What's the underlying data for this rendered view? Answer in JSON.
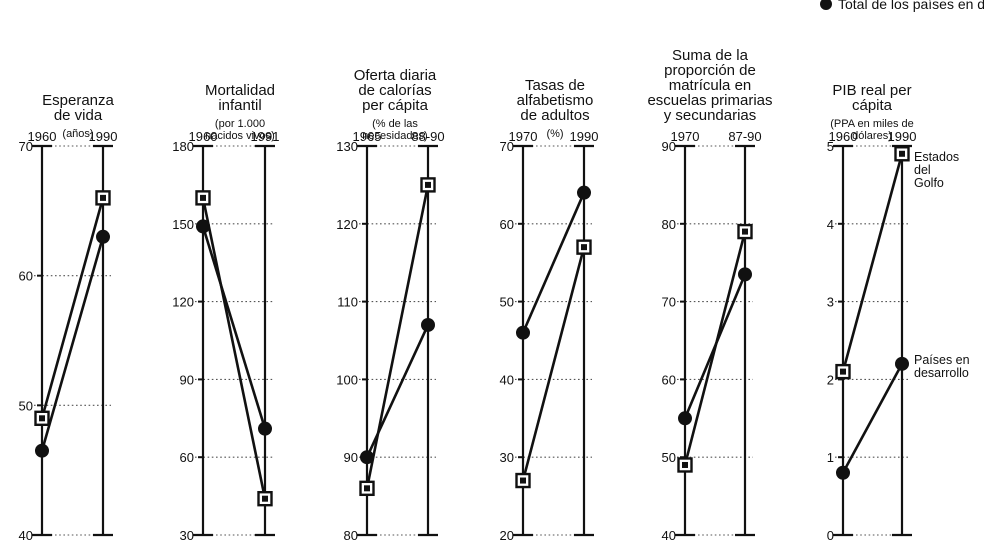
{
  "legend": {
    "label": "Total de los países en desarrollo"
  },
  "chart_data": {
    "type": "line",
    "series_names": [
      "Estados del Golfo",
      "Países en desarrollo"
    ],
    "panels": [
      {
        "title": [
          "Esperanza",
          "de vida"
        ],
        "subtitle": [
          "(años)"
        ],
        "x": [
          "1960",
          "1990"
        ],
        "ylim": [
          40,
          70
        ],
        "ticks": [
          40,
          50,
          60,
          70
        ],
        "series": [
          {
            "marker": "square",
            "values": [
              49,
              66
            ]
          },
          {
            "marker": "circle",
            "values": [
              46.5,
              63
            ]
          }
        ]
      },
      {
        "title": [
          "Mortalidad",
          "infantil"
        ],
        "subtitle": [
          "(por 1.000",
          "nacidos vivos)"
        ],
        "x": [
          "1960",
          "1991"
        ],
        "ylim": [
          30,
          180
        ],
        "ticks": [
          30,
          60,
          90,
          120,
          150,
          180
        ],
        "series": [
          {
            "marker": "square",
            "values": [
              160,
              44
            ]
          },
          {
            "marker": "circle",
            "values": [
              149,
              71
            ]
          }
        ]
      },
      {
        "title": [
          "Oferta diaria",
          "de calorías",
          "per cápita"
        ],
        "subtitle": [
          "(% de las",
          "necesidades)"
        ],
        "x": [
          "1965",
          "88-90"
        ],
        "ylim": [
          80,
          130
        ],
        "ticks": [
          80,
          90,
          100,
          110,
          120,
          130
        ],
        "series": [
          {
            "marker": "square",
            "values": [
              86,
              125
            ]
          },
          {
            "marker": "circle",
            "values": [
              90,
              107
            ]
          }
        ]
      },
      {
        "title": [
          "Tasas de",
          "alfabetismo",
          "de adultos"
        ],
        "subtitle": [
          "(%)"
        ],
        "x": [
          "1970",
          "1990"
        ],
        "ylim": [
          20,
          70
        ],
        "ticks": [
          20,
          30,
          40,
          50,
          60,
          70
        ],
        "series": [
          {
            "marker": "square",
            "values": [
              27,
              57
            ]
          },
          {
            "marker": "circle",
            "values": [
              46,
              64
            ]
          }
        ]
      },
      {
        "title": [
          "Suma de la",
          "proporción de",
          "matrícula en",
          "escuelas primarias",
          "y secundarias"
        ],
        "subtitle": [],
        "x": [
          "1970",
          "87-90"
        ],
        "ylim": [
          40,
          90
        ],
        "ticks": [
          40,
          50,
          60,
          70,
          80,
          90
        ],
        "series": [
          {
            "marker": "square",
            "values": [
              49,
              79
            ]
          },
          {
            "marker": "circle",
            "values": [
              55,
              73.5
            ]
          }
        ]
      },
      {
        "title": [
          "PIB real per",
          "cápita"
        ],
        "subtitle": [
          "(PPA en miles de",
          "dólares)"
        ],
        "x": [
          "1960",
          "1990"
        ],
        "ylim": [
          0,
          5
        ],
        "ticks": [
          0,
          1,
          2,
          3,
          4,
          5
        ],
        "series": [
          {
            "marker": "square",
            "values": [
              2.1,
              4.9
            ]
          },
          {
            "marker": "circle",
            "values": [
              0.8,
              2.2
            ]
          }
        ],
        "annotations": [
          {
            "series": 0,
            "lines": [
              "Estados",
              "del",
              "Golfo"
            ]
          },
          {
            "series": 1,
            "lines": [
              "Países en",
              "desarrollo"
            ]
          }
        ]
      }
    ]
  }
}
